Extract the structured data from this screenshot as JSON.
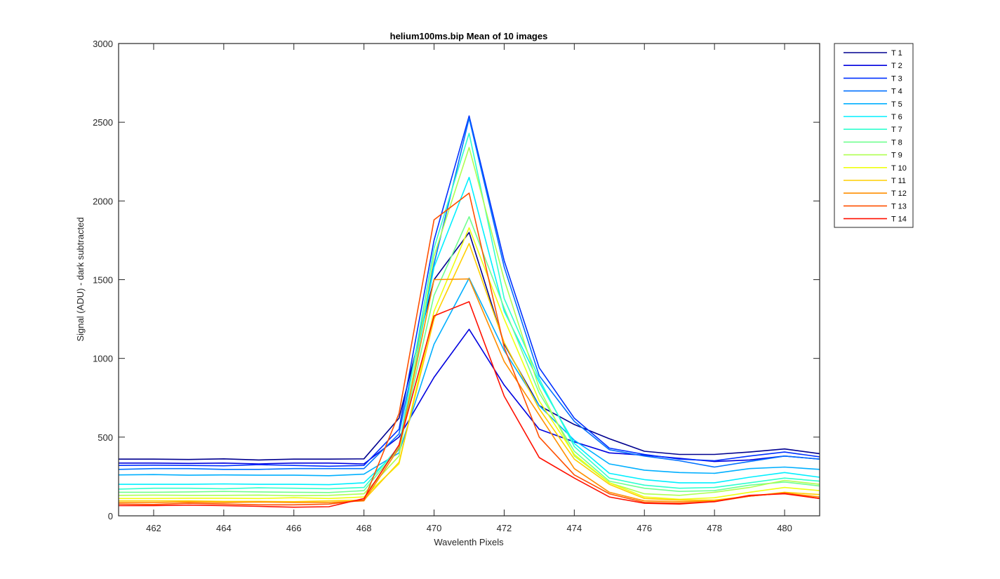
{
  "chart_data": {
    "type": "line",
    "title": "helium100ms.bip  Mean of 10 images",
    "xlabel": "Wavelenth Pixels",
    "ylabel": "Signal (ADU) - dark subtracted",
    "xlim": [
      461,
      481
    ],
    "ylim": [
      0,
      3000
    ],
    "xticks": [
      462,
      464,
      466,
      468,
      470,
      472,
      474,
      476,
      478,
      480
    ],
    "yticks": [
      0,
      500,
      1000,
      1500,
      2000,
      2500,
      3000
    ],
    "grid": false,
    "legend_position": "outside-top-right",
    "x": [
      461,
      462,
      463,
      464,
      465,
      466,
      467,
      468,
      469,
      470,
      471,
      472,
      473,
      474,
      475,
      476,
      477,
      478,
      479,
      480,
      481
    ],
    "series": [
      {
        "name": "T 1",
        "color": "#00008f",
        "values": [
          360,
          360,
          358,
          362,
          355,
          360,
          360,
          362,
          620,
          1500,
          1800,
          1090,
          700,
          580,
          490,
          410,
          390,
          390,
          405,
          425,
          395
        ]
      },
      {
        "name": "T 2",
        "color": "#0000df",
        "values": [
          335,
          335,
          333,
          335,
          330,
          335,
          335,
          330,
          500,
          880,
          1185,
          830,
          550,
          470,
          400,
          385,
          365,
          345,
          355,
          380,
          360
        ]
      },
      {
        "name": "T 3",
        "color": "#0030ff",
        "values": [
          320,
          322,
          320,
          318,
          325,
          320,
          315,
          320,
          550,
          1750,
          2540,
          1620,
          940,
          620,
          430,
          390,
          360,
          350,
          380,
          405,
          375
        ]
      },
      {
        "name": "T 4",
        "color": "#0070ff",
        "values": [
          295,
          300,
          300,
          295,
          295,
          300,
          300,
          300,
          520,
          1600,
          2525,
          1580,
          890,
          600,
          420,
          380,
          350,
          310,
          345,
          380,
          360
        ]
      },
      {
        "name": "T 5",
        "color": "#00afff",
        "values": [
          260,
          262,
          258,
          260,
          258,
          258,
          255,
          265,
          400,
          1090,
          1510,
          1050,
          700,
          480,
          330,
          290,
          275,
          270,
          300,
          310,
          295
        ]
      },
      {
        "name": "T 6",
        "color": "#00efff",
        "values": [
          200,
          200,
          200,
          203,
          200,
          200,
          198,
          210,
          420,
          1580,
          2150,
          1300,
          850,
          460,
          270,
          230,
          210,
          210,
          245,
          275,
          245
        ]
      },
      {
        "name": "T 7",
        "color": "#30ffcf",
        "values": [
          170,
          175,
          175,
          172,
          178,
          175,
          172,
          180,
          440,
          1700,
          2430,
          1380,
          870,
          440,
          240,
          195,
          175,
          180,
          210,
          240,
          220
        ]
      },
      {
        "name": "T 8",
        "color": "#70ff8f",
        "values": [
          150,
          150,
          152,
          155,
          152,
          150,
          148,
          160,
          430,
          1400,
          1900,
          1320,
          780,
          410,
          220,
          175,
          155,
          160,
          195,
          215,
          190
        ]
      },
      {
        "name": "T 9",
        "color": "#afff50",
        "values": [
          130,
          132,
          130,
          130,
          132,
          128,
          130,
          140,
          380,
          1650,
          2340,
          1500,
          810,
          380,
          210,
          140,
          130,
          150,
          180,
          225,
          200
        ]
      },
      {
        "name": "T 10",
        "color": "#efff10",
        "values": [
          110,
          110,
          112,
          112,
          110,
          115,
          110,
          120,
          330,
          1300,
          1830,
          1250,
          730,
          390,
          210,
          120,
          105,
          115,
          150,
          180,
          160
        ]
      },
      {
        "name": "T 11",
        "color": "#ffcf00",
        "values": [
          95,
          95,
          95,
          92,
          92,
          90,
          95,
          100,
          340,
          1250,
          1730,
          1100,
          680,
          360,
          200,
          110,
          100,
          100,
          125,
          150,
          135
        ]
      },
      {
        "name": "T 12",
        "color": "#ff8f00",
        "values": [
          85,
          85,
          88,
          85,
          88,
          85,
          85,
          95,
          430,
          1500,
          1505,
          980,
          640,
          300,
          150,
          95,
          90,
          95,
          125,
          145,
          120
        ]
      },
      {
        "name": "T 13",
        "color": "#ff5000",
        "values": [
          75,
          72,
          80,
          75,
          70,
          70,
          75,
          100,
          650,
          1880,
          2050,
          1070,
          500,
          260,
          140,
          85,
          80,
          90,
          125,
          145,
          110
        ]
      },
      {
        "name": "T 14",
        "color": "#ff1000",
        "values": [
          65,
          65,
          68,
          65,
          60,
          55,
          58,
          110,
          450,
          1270,
          1360,
          760,
          370,
          240,
          120,
          80,
          75,
          90,
          130,
          140,
          110
        ]
      }
    ]
  }
}
